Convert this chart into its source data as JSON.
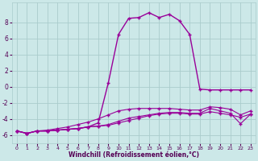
{
  "xlabel": "Windchill (Refroidissement éolien,°C)",
  "bg_color": "#cce8e8",
  "grid_color": "#aacccc",
  "line_color": "#990099",
  "xlim": [
    -0.5,
    23.5
  ],
  "ylim": [
    -7,
    10.5
  ],
  "xticks": [
    0,
    1,
    2,
    3,
    4,
    5,
    6,
    7,
    8,
    9,
    10,
    11,
    12,
    13,
    14,
    15,
    16,
    17,
    18,
    19,
    20,
    21,
    22,
    23
  ],
  "yticks": [
    -6,
    -4,
    -2,
    0,
    2,
    4,
    6,
    8
  ],
  "line1_x": [
    0,
    1,
    2,
    3,
    4,
    5,
    6,
    7,
    8,
    9,
    10,
    11,
    12,
    13,
    14,
    15,
    16,
    17,
    18,
    19,
    20,
    21,
    22,
    23
  ],
  "line1_y": [
    -5.5,
    -5.8,
    -5.5,
    -5.5,
    -5.4,
    -5.3,
    -5.2,
    -5.0,
    -4.9,
    -4.8,
    -4.5,
    -4.2,
    -3.9,
    -3.6,
    -3.4,
    -3.3,
    -3.3,
    -3.4,
    -3.4,
    -3.1,
    -3.3,
    -3.5,
    -3.8,
    -3.4
  ],
  "line2_x": [
    0,
    1,
    2,
    3,
    4,
    5,
    6,
    7,
    8,
    9,
    10,
    11,
    12,
    13,
    14,
    15,
    16,
    17,
    18,
    19,
    20,
    21,
    22,
    23
  ],
  "line2_y": [
    -5.5,
    -5.8,
    -5.5,
    -5.5,
    -5.4,
    -5.3,
    -5.2,
    -5.0,
    -4.9,
    -4.7,
    -4.3,
    -3.9,
    -3.7,
    -3.5,
    -3.3,
    -3.2,
    -3.2,
    -3.3,
    -3.3,
    -2.7,
    -3.0,
    -3.3,
    -4.6,
    -3.4
  ],
  "line3_x": [
    0,
    1,
    2,
    3,
    4,
    5,
    6,
    7,
    8,
    9,
    10,
    11,
    12,
    13,
    14,
    15,
    16,
    17,
    18,
    19,
    20,
    21,
    22,
    23
  ],
  "line3_y": [
    -5.5,
    -5.8,
    -5.5,
    -5.4,
    -5.2,
    -5.0,
    -4.7,
    -4.4,
    -4.0,
    -3.5,
    -3.0,
    -2.8,
    -2.7,
    -2.7,
    -2.7,
    -2.7,
    -2.8,
    -2.9,
    -2.9,
    -2.5,
    -2.6,
    -2.8,
    -3.5,
    -3.0
  ],
  "line4_x": [
    0,
    1,
    2,
    3,
    4,
    5,
    6,
    7,
    8,
    9,
    10,
    11,
    12,
    13,
    14,
    15,
    16,
    17,
    18,
    19,
    20,
    21,
    22,
    23
  ],
  "line4_y": [
    -5.5,
    -5.8,
    -5.5,
    -5.5,
    -5.4,
    -5.3,
    -5.2,
    -5.0,
    -4.5,
    0.5,
    6.5,
    8.5,
    8.6,
    9.2,
    8.6,
    9.0,
    8.2,
    6.5,
    -0.3,
    -0.4,
    -0.4,
    -0.4,
    -0.4,
    -0.4
  ]
}
